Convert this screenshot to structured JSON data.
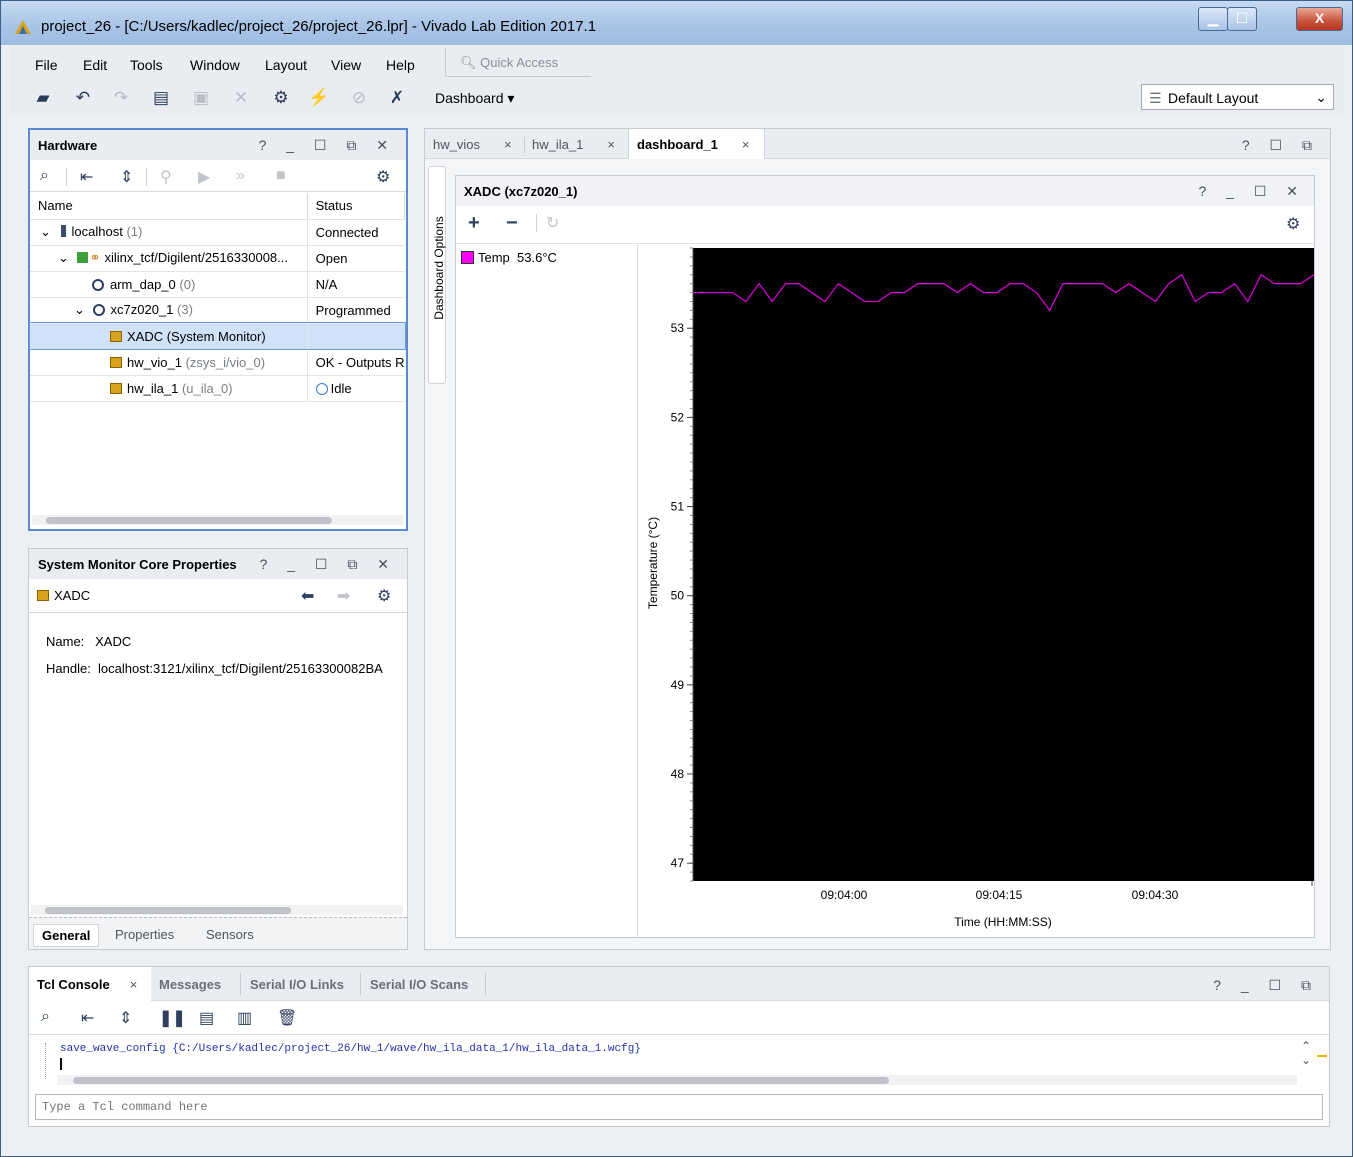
{
  "window": {
    "title": "project_26 - [C:/Users/kadlec/project_26/project_26.lpr] - Vivado Lab Edition 2017.1",
    "minimize": "▁",
    "maximize": "☐",
    "close": "X"
  },
  "menu": {
    "items": [
      "File",
      "Edit",
      "Tools",
      "Window",
      "Layout",
      "View",
      "Help"
    ],
    "quick_access": "Quick Access"
  },
  "toolbar": {
    "dashboard_label": "Dashboard",
    "layout_value": "Default Layout"
  },
  "hardware": {
    "title": "Hardware",
    "controls": "? _ ☐ ⧉ ✕",
    "col_name": "Name",
    "col_status": "Status",
    "rows": [
      {
        "name": "localhost",
        "count": "(1)",
        "status": "Connected"
      },
      {
        "name": "xilinx_tcf/Digilent/2516330008...",
        "count": "",
        "status": "Open"
      },
      {
        "name": "arm_dap_0",
        "count": "(0)",
        "status": "N/A"
      },
      {
        "name": "xc7z020_1",
        "count": "(3)",
        "status": "Programmed"
      },
      {
        "name": "XADC (System Monitor)",
        "count": "",
        "status": ""
      },
      {
        "name": "hw_vio_1",
        "count": "(zsys_i/vio_0)",
        "status": "OK - Outputs R"
      },
      {
        "name": "hw_ila_1",
        "count": "(u_ila_0)",
        "status": "Idle"
      }
    ]
  },
  "props": {
    "title": "System Monitor Core Properties",
    "controls": "? _ ☐ ⧉ ✕",
    "item": "XADC",
    "name_label": "Name:",
    "name_value": "XADC",
    "handle_label": "Handle:",
    "handle_value": "localhost:3121/xilinx_tcf/Digilent/25163300082BA",
    "tabs": [
      "General",
      "Properties",
      "Sensors"
    ]
  },
  "editor": {
    "tabs": [
      "hw_vios",
      "hw_ila_1",
      "dashboard_1"
    ],
    "controls": "? ☐ ⧉",
    "side_label": "Dashboard Options"
  },
  "xadc": {
    "title": "XADC (xc7z020_1)",
    "controls": "? _ ☐ ✕",
    "legend_label": "Temp",
    "legend_value": "53.6°C",
    "legend_color": "#ff00ff"
  },
  "chart_data": {
    "type": "line",
    "ylabel": "Temperature (°C)",
    "xlabel": "Time (HH:MM:SS)",
    "ylim": [
      46.8,
      53.9
    ],
    "yticks": [
      47,
      48,
      49,
      50,
      51,
      52,
      53
    ],
    "xticks": [
      "09:04:00",
      "09:04:15",
      "09:04:30"
    ],
    "line_color": "#d000d0",
    "background": "#000000",
    "series": [
      {
        "name": "Temp",
        "values": [
          53.4,
          53.4,
          53.4,
          53.4,
          53.3,
          53.5,
          53.3,
          53.5,
          53.5,
          53.4,
          53.3,
          53.5,
          53.4,
          53.3,
          53.3,
          53.4,
          53.4,
          53.5,
          53.5,
          53.5,
          53.4,
          53.5,
          53.4,
          53.4,
          53.5,
          53.5,
          53.4,
          53.2,
          53.5,
          53.5,
          53.5,
          53.5,
          53.4,
          53.5,
          53.4,
          53.3,
          53.5,
          53.6,
          53.3,
          53.4,
          53.4,
          53.5,
          53.3,
          53.6,
          53.5,
          53.5,
          53.5,
          53.6
        ]
      }
    ]
  },
  "console": {
    "tabs": [
      "Tcl Console",
      "Messages",
      "Serial I/O Links",
      "Serial I/O Scans"
    ],
    "controls": "? _ ☐ ⧉",
    "line": "save_wave_config {C:/Users/kadlec/project_26/hw_1/wave/hw_ila_data_1/hw_ila_data_1.wcfg}",
    "placeholder": "Type a Tcl command here"
  }
}
